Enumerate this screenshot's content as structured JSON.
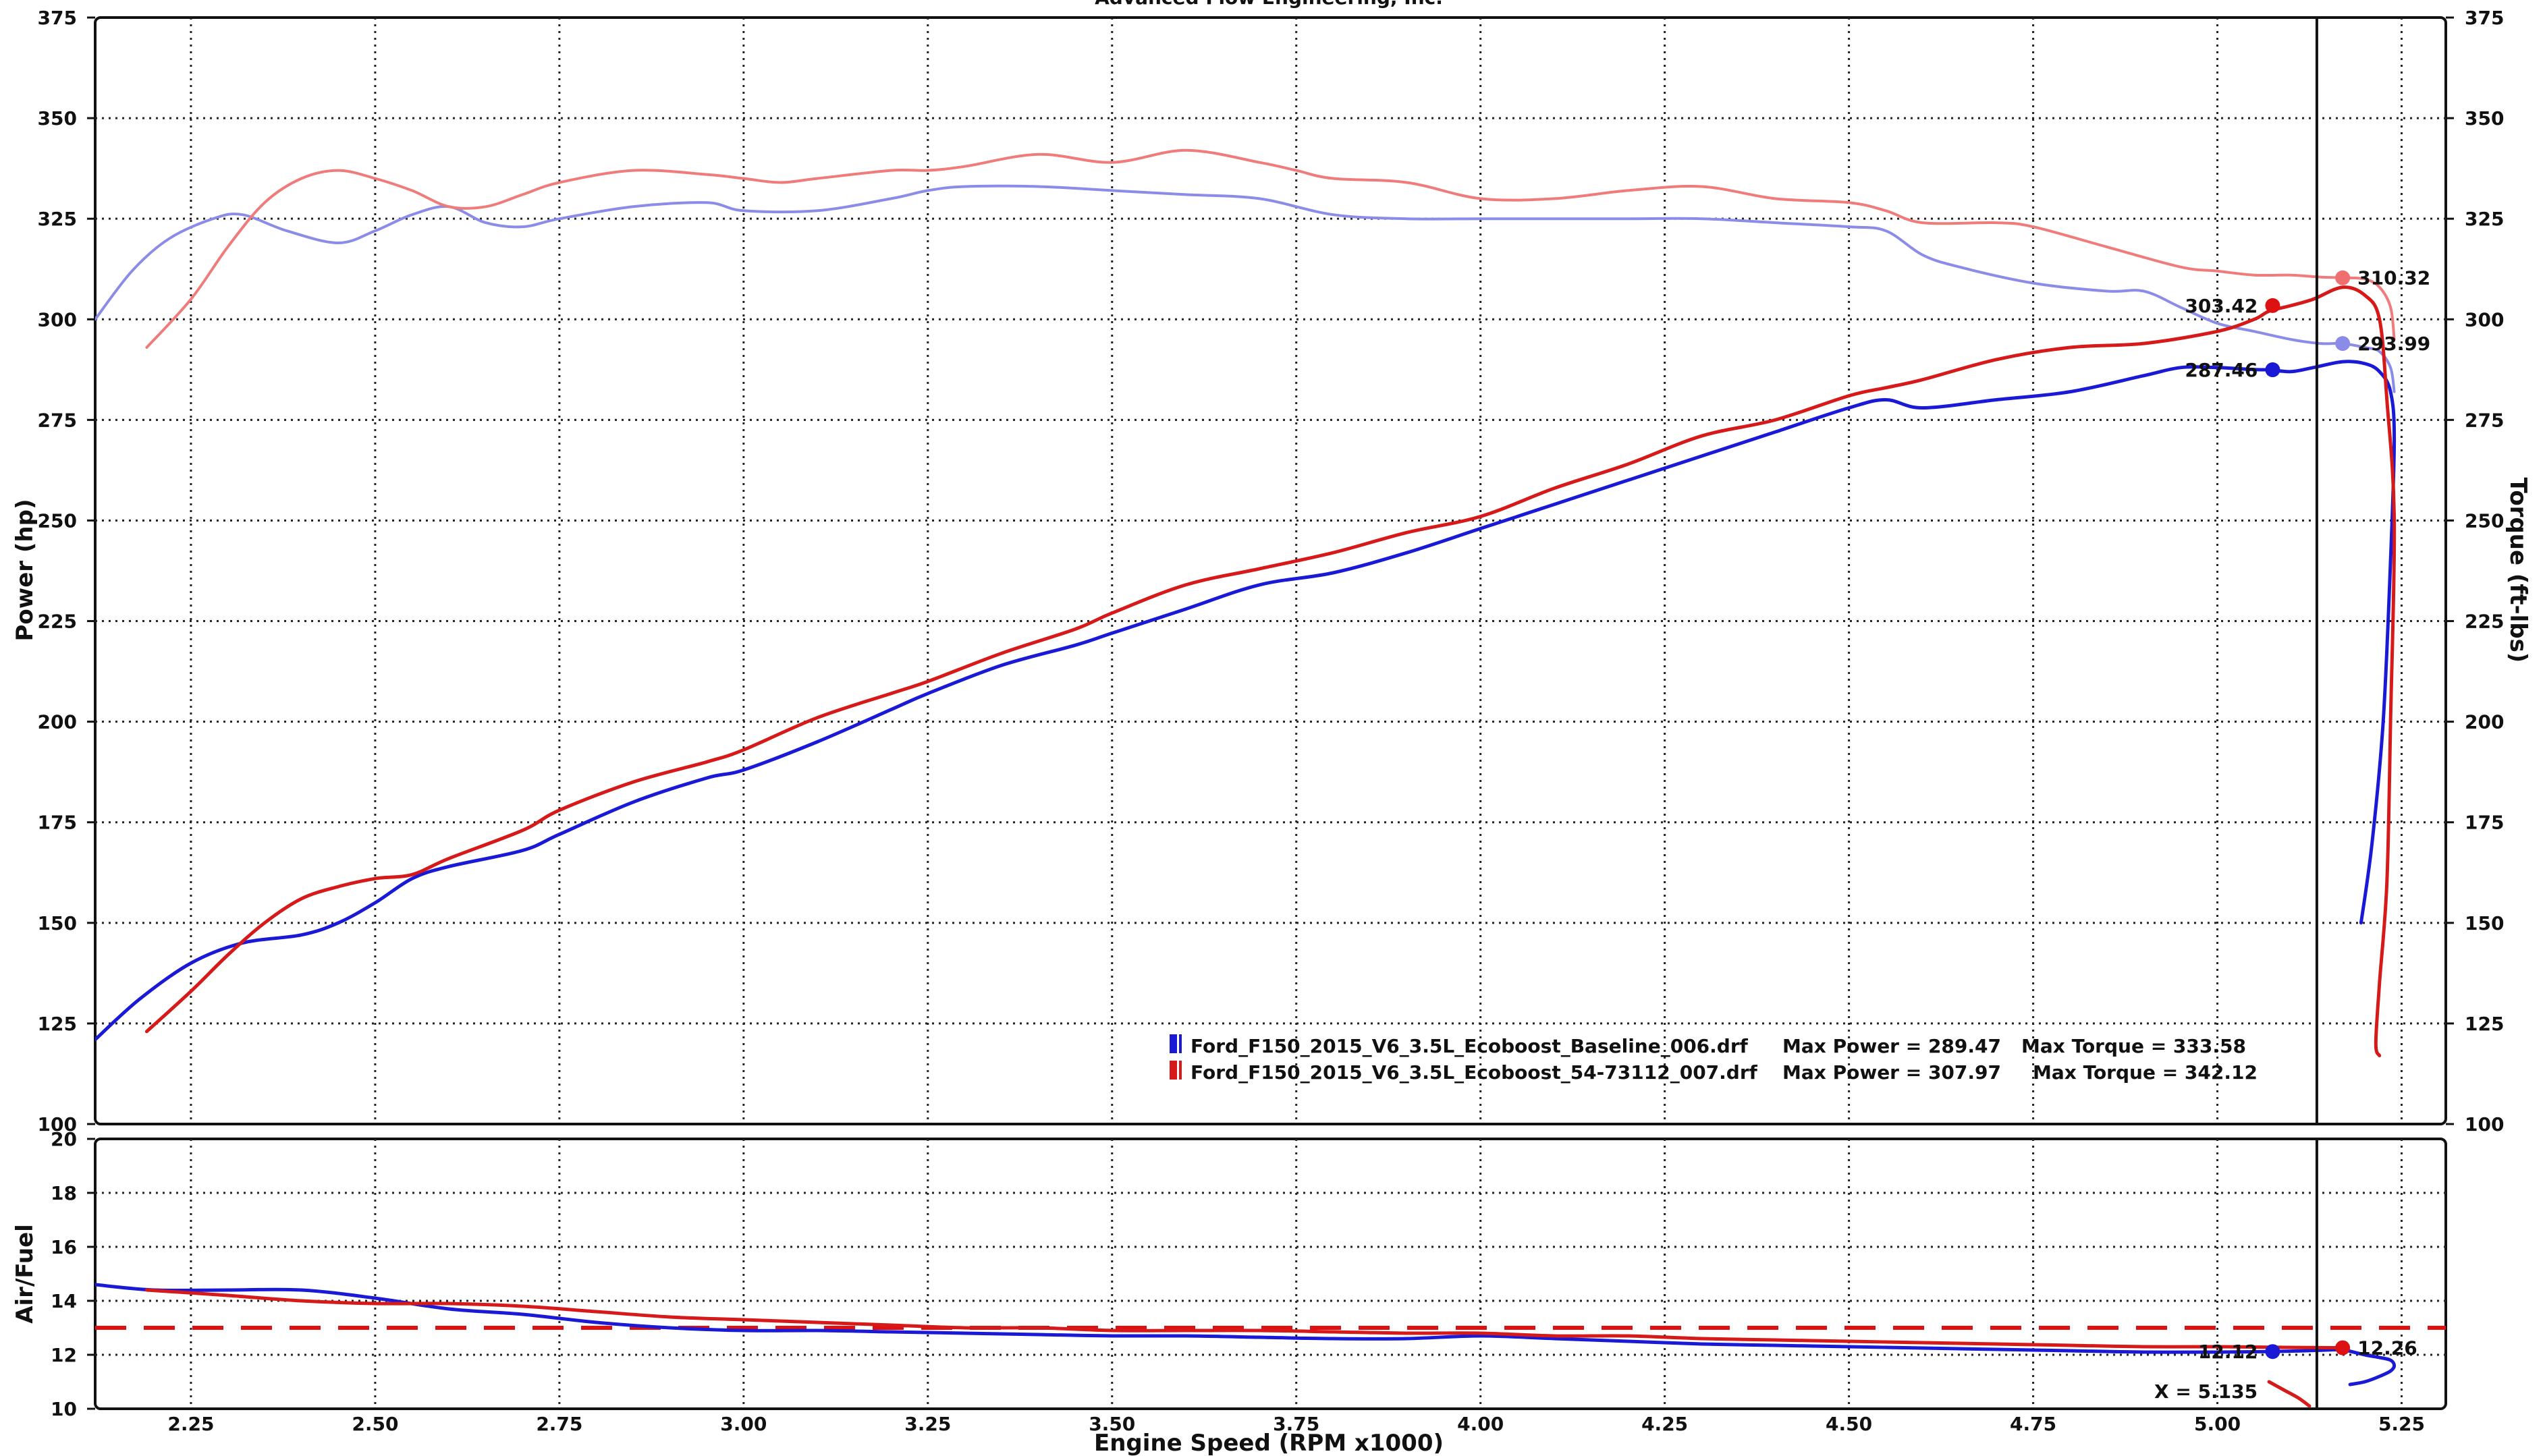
{
  "chart_data": [
    {
      "type": "line",
      "title": "Advanced Flow Engineering, Inc.",
      "xlabel": "Engine Speed (RPM x1000)",
      "ylabel": "Power (hp)",
      "y2label": "Torque (ft-lbs)",
      "xlim": [
        2.12,
        5.31
      ],
      "ylim": [
        100,
        375
      ],
      "y2lim": [
        100,
        375
      ],
      "x_ticks": [
        "2.25",
        "2.50",
        "2.75",
        "3.00",
        "3.25",
        "3.50",
        "3.75",
        "4.00",
        "4.25",
        "4.50",
        "4.75",
        "5.00",
        "5.25"
      ],
      "y_ticks": [
        "100",
        "125",
        "150",
        "175",
        "200",
        "225",
        "250",
        "275",
        "300",
        "325",
        "350",
        "375"
      ],
      "grid": true,
      "legend_position": "bottom-right",
      "legend": [
        {
          "name": "Ford_F150_2015_V6_3.5L_Ecoboost_Baseline_006.drf",
          "max_power_text": "Max Power = 289.47",
          "max_torque_text": "Max Torque = 333.58",
          "color": "#1a1ad6"
        },
        {
          "name": "Ford_F150_2015_V6_3.5L_Ecoboost_54-73112_007.drf",
          "max_power_text": "Max Power = 307.97",
          "max_torque_text": "Max Torque = 342.12",
          "color": "#d61a1a"
        }
      ],
      "cursor_x": 5.135,
      "series": [
        {
          "role": "baseline-power",
          "color": "#1a1ad6",
          "x": [
            2.12,
            2.18,
            2.25,
            2.32,
            2.4,
            2.45,
            2.5,
            2.55,
            2.6,
            2.7,
            2.75,
            2.85,
            2.95,
            3.0,
            3.1,
            3.2,
            3.25,
            3.35,
            3.45,
            3.5,
            3.6,
            3.7,
            3.8,
            3.9,
            4.0,
            4.1,
            4.2,
            4.3,
            4.4,
            4.5,
            4.55,
            4.6,
            4.7,
            4.8,
            4.9,
            4.95,
            5.0,
            5.05,
            5.07,
            5.1,
            5.13,
            5.17,
            5.2,
            5.22,
            5.235,
            5.24,
            5.235,
            5.225,
            5.21,
            5.195
          ],
          "y": [
            121,
            131,
            140,
            145,
            147,
            150,
            155,
            161,
            164,
            168,
            172,
            180,
            186,
            188,
            195,
            203,
            207,
            214,
            219,
            222,
            228,
            234,
            237,
            242,
            248,
            254,
            260,
            266,
            272,
            278,
            280,
            278,
            280,
            282,
            286,
            288,
            288,
            287.5,
            287.46,
            287,
            288,
            289.47,
            289,
            287,
            282,
            270,
            240,
            200,
            170,
            150
          ]
        },
        {
          "role": "modified-power",
          "color": "#d61a1a",
          "x": [
            2.19,
            2.25,
            2.3,
            2.35,
            2.4,
            2.45,
            2.5,
            2.55,
            2.6,
            2.7,
            2.75,
            2.85,
            2.95,
            3.0,
            3.1,
            3.2,
            3.25,
            3.35,
            3.45,
            3.5,
            3.6,
            3.7,
            3.8,
            3.9,
            4.0,
            4.1,
            4.2,
            4.3,
            4.4,
            4.5,
            4.55,
            4.6,
            4.7,
            4.8,
            4.9,
            5.0,
            5.05,
            5.07,
            5.1,
            5.13,
            5.17,
            5.2,
            5.22,
            5.23,
            5.24,
            5.235,
            5.23,
            5.22,
            5.215,
            5.22
          ],
          "y": [
            123,
            133,
            142,
            150,
            156,
            159,
            161,
            162,
            166,
            173,
            178,
            185,
            190,
            193,
            201,
            207,
            210,
            217,
            223,
            227,
            234,
            238,
            242,
            247,
            251,
            258,
            264,
            271,
            275,
            281,
            283,
            285,
            290,
            293,
            294,
            297,
            300,
            302,
            303.42,
            305,
            307.97,
            306,
            300,
            280,
            250,
            200,
            160,
            135,
            120,
            117
          ]
        },
        {
          "role": "baseline-torque",
          "color": "#8b8be8",
          "x": [
            2.12,
            2.17,
            2.22,
            2.28,
            2.32,
            2.38,
            2.45,
            2.5,
            2.55,
            2.6,
            2.65,
            2.7,
            2.75,
            2.85,
            2.95,
            3.0,
            3.1,
            3.2,
            3.25,
            3.3,
            3.4,
            3.5,
            3.6,
            3.7,
            3.8,
            3.9,
            4.0,
            4.1,
            4.2,
            4.3,
            4.4,
            4.5,
            4.55,
            4.6,
            4.65,
            4.75,
            4.85,
            4.9,
            4.95,
            5.0,
            5.05,
            5.1,
            5.14,
            5.17,
            5.2,
            5.22,
            5.235,
            5.24
          ],
          "y": [
            300,
            312,
            320,
            325,
            326,
            322,
            319,
            322,
            326,
            328,
            324,
            323,
            325,
            328,
            329,
            327,
            327,
            330,
            332,
            333,
            333,
            332,
            331,
            330,
            326,
            325,
            325,
            325,
            325,
            325,
            324,
            323,
            322,
            316,
            313,
            309,
            307,
            307,
            303,
            299,
            297,
            295,
            294,
            293.99,
            293,
            292,
            288,
            282
          ]
        },
        {
          "role": "modified-torque",
          "color": "#ef7b7b",
          "x": [
            2.19,
            2.25,
            2.3,
            2.35,
            2.4,
            2.45,
            2.5,
            2.55,
            2.6,
            2.65,
            2.7,
            2.75,
            2.85,
            2.95,
            3.0,
            3.05,
            3.1,
            3.2,
            3.25,
            3.3,
            3.4,
            3.5,
            3.6,
            3.7,
            3.75,
            3.8,
            3.9,
            4.0,
            4.1,
            4.2,
            4.3,
            4.4,
            4.5,
            4.55,
            4.6,
            4.7,
            4.75,
            4.85,
            4.95,
            5.0,
            5.05,
            5.1,
            5.14,
            5.17,
            5.2,
            5.22,
            5.235,
            5.24
          ],
          "y": [
            293,
            305,
            318,
            329,
            335,
            337,
            335,
            332,
            328,
            328,
            331,
            334,
            337,
            336,
            335,
            334,
            335,
            337,
            337,
            338,
            341,
            339,
            342,
            339,
            337,
            335,
            334,
            330,
            330,
            332,
            333,
            330,
            329,
            327,
            324,
            324,
            323,
            318,
            313,
            312,
            311,
            311,
            310.5,
            310.32,
            310,
            308,
            303,
            295
          ]
        }
      ],
      "markers": [
        {
          "label": "310.32",
          "x": 5.17,
          "y": 310.32,
          "color": "#ef6f6f",
          "label_side": "right"
        },
        {
          "label": "303.42",
          "x": 5.075,
          "y": 303.42,
          "color": "#dd1111",
          "label_side": "left"
        },
        {
          "label": "293.99",
          "x": 5.17,
          "y": 293.99,
          "color": "#8b8be8",
          "label_side": "right"
        },
        {
          "label": "287.46",
          "x": 5.075,
          "y": 287.46,
          "color": "#1a1ad6",
          "label_side": "left"
        }
      ]
    },
    {
      "type": "line",
      "ylabel": "Air/Fuel",
      "xlabel": "Engine Speed (RPM x1000)",
      "xlim": [
        2.12,
        5.31
      ],
      "ylim": [
        10,
        20
      ],
      "y_ticks": [
        "10",
        "12",
        "14",
        "16",
        "18",
        "20"
      ],
      "grid": true,
      "reference_line": {
        "y": 13.0,
        "color": "#e01010",
        "style": "dashed"
      },
      "cursor_text": "X = 5.135",
      "series": [
        {
          "role": "baseline-afr",
          "color": "#1a1ad6",
          "x": [
            2.12,
            2.2,
            2.3,
            2.4,
            2.5,
            2.6,
            2.7,
            2.8,
            2.9,
            3.0,
            3.1,
            3.2,
            3.3,
            3.4,
            3.5,
            3.6,
            3.7,
            3.8,
            3.9,
            4.0,
            4.1,
            4.2,
            4.3,
            4.4,
            4.5,
            4.6,
            4.7,
            4.8,
            4.9,
            5.0,
            5.07,
            5.12,
            5.17
          ],
          "y": [
            14.6,
            14.4,
            14.4,
            14.4,
            14.1,
            13.7,
            13.5,
            13.2,
            13.0,
            12.9,
            12.9,
            12.85,
            12.8,
            12.75,
            12.7,
            12.7,
            12.65,
            12.6,
            12.6,
            12.7,
            12.6,
            12.5,
            12.4,
            12.35,
            12.3,
            12.25,
            12.2,
            12.15,
            12.1,
            12.1,
            12.12,
            12.15,
            12.2
          ]
        },
        {
          "role": "baseline-afr-tail",
          "color": "#1a1ad6",
          "x": [
            5.17,
            5.2,
            5.22,
            5.235,
            5.24,
            5.235,
            5.22,
            5.2,
            5.18
          ],
          "y": [
            12.2,
            12.0,
            11.9,
            11.8,
            11.6,
            11.4,
            11.2,
            11.0,
            10.9
          ]
        },
        {
          "role": "modified-afr",
          "color": "#d61a1a",
          "x": [
            2.19,
            2.3,
            2.4,
            2.5,
            2.6,
            2.7,
            2.8,
            2.9,
            3.0,
            3.1,
            3.2,
            3.3,
            3.4,
            3.5,
            3.6,
            3.7,
            3.8,
            3.9,
            4.0,
            4.1,
            4.2,
            4.3,
            4.4,
            4.5,
            4.6,
            4.7,
            4.8,
            4.9,
            5.0,
            5.07,
            5.12,
            5.17
          ],
          "y": [
            14.4,
            14.2,
            14.0,
            13.9,
            13.9,
            13.8,
            13.6,
            13.4,
            13.3,
            13.2,
            13.1,
            13.0,
            13.0,
            12.9,
            12.9,
            12.9,
            12.85,
            12.8,
            12.8,
            12.7,
            12.7,
            12.6,
            12.55,
            12.5,
            12.45,
            12.4,
            12.35,
            12.3,
            12.3,
            12.28,
            12.27,
            12.26
          ]
        },
        {
          "role": "modified-afr-tail",
          "color": "#d61a1a",
          "x": [
            5.07,
            5.09,
            5.11,
            5.125
          ],
          "y": [
            11.0,
            10.7,
            10.4,
            10.1
          ]
        }
      ],
      "markers": [
        {
          "label": "12.12",
          "x": 5.075,
          "y": 12.12,
          "color": "#1a1ad6",
          "label_side": "left"
        },
        {
          "label": "12.26",
          "x": 5.17,
          "y": 12.26,
          "color": "#dd1111",
          "label_side": "right"
        }
      ]
    }
  ]
}
